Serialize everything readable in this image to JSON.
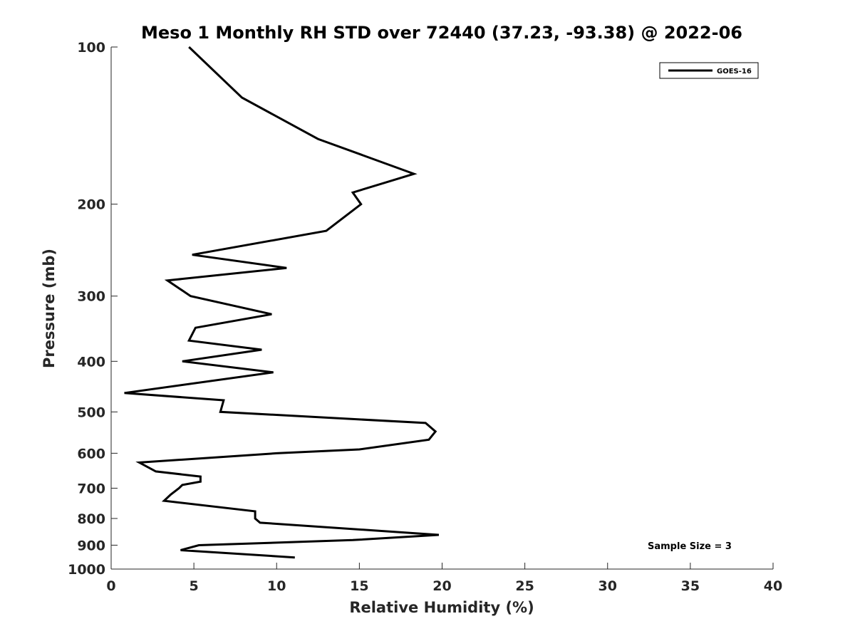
{
  "chart_data": {
    "type": "line",
    "title": "Meso 1 Monthly RH STD over 72440 (37.23, -93.38) @ 2022-06",
    "xlabel": "Relative Humidity (%)",
    "ylabel": "Pressure (mb)",
    "xlim": [
      0,
      40
    ],
    "ylim": [
      100,
      1000
    ],
    "yscale": "log",
    "y_reversed": true,
    "x_ticks": [
      "0",
      "5",
      "10",
      "15",
      "20",
      "25",
      "30",
      "35",
      "40"
    ],
    "y_ticks": [
      "100",
      "200",
      "300",
      "400",
      "500",
      "600",
      "700",
      "800",
      "900",
      "1000"
    ],
    "grid": false,
    "legend_position": "top-right",
    "series": [
      {
        "name": "GOES-16",
        "color": "#000000",
        "points": [
          [
            4.7,
            100
          ],
          [
            7.9,
            125
          ],
          [
            12.5,
            150
          ],
          [
            18.3,
            175
          ],
          [
            14.6,
            190
          ],
          [
            15.1,
            200
          ],
          [
            13.0,
            225
          ],
          [
            4.9,
            250
          ],
          [
            10.6,
            265
          ],
          [
            3.4,
            280
          ],
          [
            4.8,
            300
          ],
          [
            9.7,
            325
          ],
          [
            5.1,
            345
          ],
          [
            4.7,
            365
          ],
          [
            9.1,
            380
          ],
          [
            4.3,
            400
          ],
          [
            9.8,
            420
          ],
          [
            0.8,
            460
          ],
          [
            6.8,
            475
          ],
          [
            6.6,
            500
          ],
          [
            19.0,
            525
          ],
          [
            19.6,
            545
          ],
          [
            19.2,
            565
          ],
          [
            15.0,
            590
          ],
          [
            10.0,
            600
          ],
          [
            1.7,
            625
          ],
          [
            2.7,
            650
          ],
          [
            5.4,
            665
          ],
          [
            5.4,
            680
          ],
          [
            4.3,
            690
          ],
          [
            4.1,
            700
          ],
          [
            3.6,
            720
          ],
          [
            3.2,
            740
          ],
          [
            8.7,
            775
          ],
          [
            8.7,
            800
          ],
          [
            9.0,
            815
          ],
          [
            19.8,
            860
          ],
          [
            14.6,
            880
          ],
          [
            5.3,
            900
          ],
          [
            4.2,
            920
          ],
          [
            11.1,
            950
          ]
        ]
      }
    ],
    "annotations": [
      "Sample Size = 3"
    ]
  }
}
